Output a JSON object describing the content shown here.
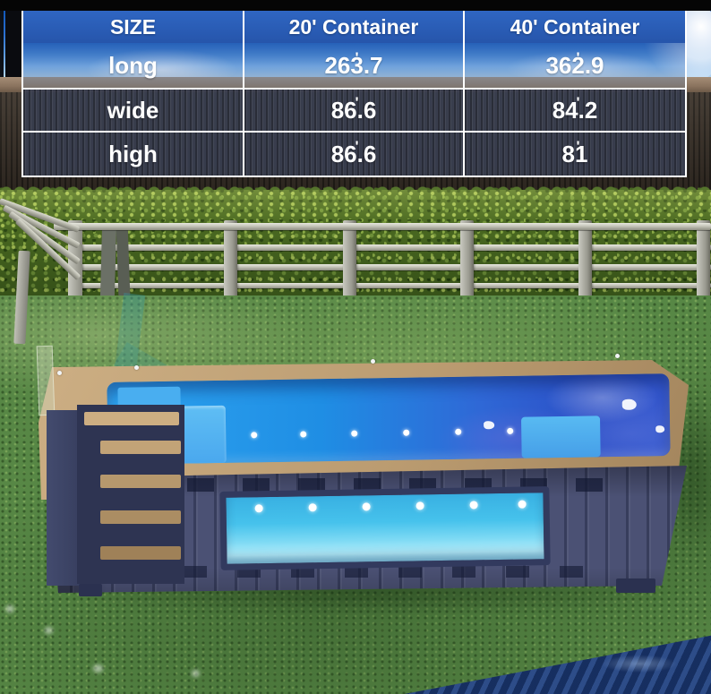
{
  "size_table": {
    "col_headers": [
      "SIZE",
      "20' Container",
      "40' Container"
    ],
    "rows": [
      {
        "label": "long",
        "c20": "263.7",
        "c40": "362.9"
      },
      {
        "label": "wide",
        "c20": "86.6",
        "c40": "84.2"
      },
      {
        "label": "high",
        "c20": "86.6",
        "c40": "81"
      }
    ],
    "unit_mark": "'"
  },
  "chart_data": {
    "type": "table",
    "columns": [
      "SIZE",
      "20' Container",
      "40' Container"
    ],
    "rows": [
      [
        "long",
        "263.7 '",
        "362.9 '"
      ],
      [
        "wide",
        "86.6 '",
        "84.2 '"
      ],
      [
        "high",
        "86.6 '",
        "81 '"
      ]
    ]
  },
  "colors": {
    "table_header_blue": "#2b5cb6",
    "table_body_slate": "#3a3f50",
    "deck_tan": "#bb9c71",
    "pool_water_blue": "#2196e8",
    "container_navy": "#4b5174",
    "window_water_aqua": "#46c2ec",
    "grass_green": "#578745",
    "hedge_green": "#45631f",
    "sky_blue": "#2a6fd0",
    "corner_water_navy": "#1c3870"
  }
}
